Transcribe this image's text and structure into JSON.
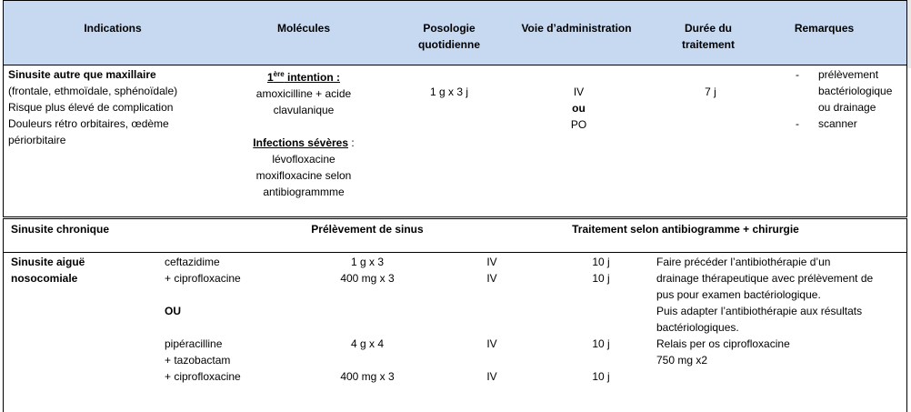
{
  "header": {
    "indications": "Indications",
    "molecules": "Molécules",
    "posologie_l1": "Posologie",
    "posologie_l2": "quotidienne",
    "voie": "Voie d’administration",
    "duree_l1": "Durée du",
    "duree_l2": "traitement",
    "remarques": "Remarques"
  },
  "row1": {
    "indication_title": "Sinusite autre que maxillaire",
    "indication_lines": [
      "(frontale, ethmoïdale, sphénoïdale)",
      "Risque plus élevé de complication",
      "Douleurs rétro orbitaires, œdème",
      "périorbitaire"
    ],
    "first_intention_prefix": "1",
    "first_intention_sup": "ère",
    "first_intention_label": " intention :",
    "first_molecule_l1": "amoxicilline + acide",
    "first_molecule_l2": "clavulanique",
    "severe_label": "Infections sévères",
    "severe_colon": " :",
    "severe_l1": "lévofloxacine",
    "severe_l2": "moxifloxacine selon",
    "severe_l3": "antibiogrammme",
    "posologie": "1 g x 3 j",
    "voie_l1": "IV",
    "voie_l2": "ou",
    "voie_l3": "PO",
    "duree": "7 j",
    "remarque1_dash": "-",
    "remarque1_l1": "prélèvement",
    "remarque1_l2": "bactériologique",
    "remarque1_l3": "ou drainage",
    "remarque2_dash": "-",
    "remarque2_l1": "scanner"
  },
  "row2": {
    "indication": "Sinusite chronique",
    "prelevement": "Prélèvement de sinus",
    "traitement": "Traitement selon antibiogramme + chirurgie"
  },
  "row3": {
    "indication_l1": "Sinusite aiguë",
    "indication_l2": "nosocomiale",
    "mol1": "ceftazidime",
    "mol2": "+ ciprofloxacine",
    "ou": "OU",
    "mol3": "pipéracilline",
    "mol4": "+ tazobactam",
    "mol5": "+ ciprofloxacine",
    "dose1": "1 g x 3",
    "dose2": "400 mg x 3",
    "dose3": "4 g x 4",
    "dose4": "400 mg x 3",
    "voie1": "IV",
    "voie2": "IV",
    "voie3": "IV",
    "voie4": "IV",
    "duree1": "10 j",
    "duree2": "10 j",
    "duree3": "10 j",
    "duree4": "10 j",
    "remarque_lines": [
      "Faire précéder l’antibiothérapie d’un",
      "drainage thérapeutique avec prélèvement de",
      "pus pour examen bactériologique.",
      "Puis adapter l’antibiothérapie aux résultats",
      "bactériologiques.",
      "Relais per os ciprofloxacine",
      "750 mg x2"
    ]
  }
}
